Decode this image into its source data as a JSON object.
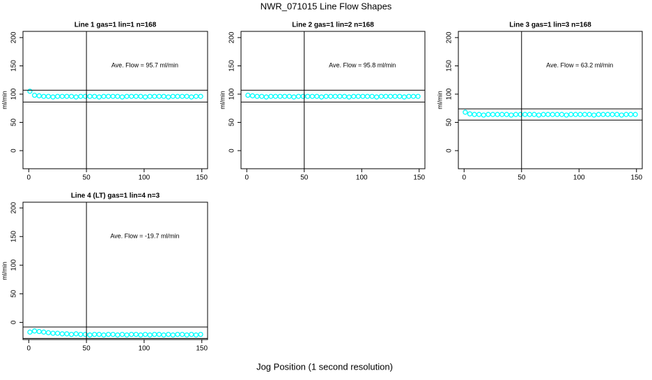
{
  "title": "NWR_071015  Line Flow Shapes",
  "xlabel": "Jog Position (1 second resolution)",
  "chart_data": [
    {
      "type": "scatter",
      "title": "Line 1 gas=1 lin=1 n=168",
      "ylabel": "ml/min",
      "annotation": "Ave. Flow =  95.7  ml/min",
      "color": "#00ffff",
      "x": [
        1,
        5,
        9,
        13,
        17,
        21,
        25,
        29,
        33,
        37,
        41,
        45,
        49,
        53,
        57,
        61,
        65,
        69,
        73,
        77,
        81,
        85,
        89,
        93,
        97,
        101,
        105,
        109,
        113,
        117,
        121,
        125,
        129,
        133,
        137,
        141,
        145,
        149
      ],
      "values": [
        105,
        98,
        97,
        96,
        96,
        95,
        96,
        96,
        96,
        96,
        95,
        96,
        96,
        96,
        96,
        95,
        96,
        96,
        96,
        96,
        95,
        96,
        96,
        96,
        96,
        95,
        96,
        96,
        96,
        96,
        95,
        96,
        96,
        96,
        96,
        95,
        96,
        96
      ],
      "hlines": [
        86,
        107
      ],
      "vlines": [
        50
      ],
      "xlim": [
        -5,
        155
      ],
      "ylim": [
        -32,
        211
      ],
      "xticks": [
        0,
        50,
        100,
        150
      ],
      "yticks": [
        0,
        50,
        100,
        150,
        200
      ]
    },
    {
      "type": "scatter",
      "title": "Line 2 gas=1 lin=2 n=168",
      "ylabel": "ml/min",
      "annotation": "Ave. Flow =  95.8  ml/min",
      "color": "#00ffff",
      "x": [
        1,
        5,
        9,
        13,
        17,
        21,
        25,
        29,
        33,
        37,
        41,
        45,
        49,
        53,
        57,
        61,
        65,
        69,
        73,
        77,
        81,
        85,
        89,
        93,
        97,
        101,
        105,
        109,
        113,
        117,
        121,
        125,
        129,
        133,
        137,
        141,
        145,
        149
      ],
      "values": [
        98,
        97,
        96,
        96,
        95,
        96,
        96,
        96,
        96,
        96,
        95,
        96,
        96,
        96,
        96,
        96,
        95,
        96,
        96,
        96,
        96,
        96,
        95,
        96,
        96,
        96,
        96,
        96,
        95,
        96,
        96,
        96,
        96,
        96,
        95,
        96,
        96,
        96
      ],
      "hlines": [
        86,
        107
      ],
      "vlines": [
        50
      ],
      "xlim": [
        -5,
        155
      ],
      "ylim": [
        -32,
        211
      ],
      "xticks": [
        0,
        50,
        100,
        150
      ],
      "yticks": [
        0,
        50,
        100,
        150,
        200
      ]
    },
    {
      "type": "scatter",
      "title": "Line 3 gas=1 lin=3 n=168",
      "ylabel": "ml/min",
      "annotation": "Ave. Flow =  63.2  ml/min",
      "color": "#00ffff",
      "x": [
        1,
        5,
        9,
        13,
        17,
        21,
        25,
        29,
        33,
        37,
        41,
        45,
        49,
        53,
        57,
        61,
        65,
        69,
        73,
        77,
        81,
        85,
        89,
        93,
        97,
        101,
        105,
        109,
        113,
        117,
        121,
        125,
        129,
        133,
        137,
        141,
        145,
        149
      ],
      "values": [
        68,
        65,
        64,
        64,
        63,
        64,
        64,
        64,
        64,
        64,
        63,
        64,
        64,
        64,
        64,
        64,
        63,
        64,
        64,
        64,
        64,
        64,
        63,
        64,
        64,
        64,
        64,
        64,
        63,
        64,
        64,
        64,
        64,
        64,
        63,
        64,
        64,
        64
      ],
      "hlines": [
        54,
        74
      ],
      "vlines": [
        50
      ],
      "xlim": [
        -5,
        155
      ],
      "ylim": [
        -32,
        211
      ],
      "xticks": [
        0,
        50,
        100,
        150
      ],
      "yticks": [
        0,
        50,
        100,
        150,
        200
      ]
    },
    {
      "type": "scatter",
      "title": "Line 4 (LT) gas=1 lin=4 n=3",
      "ylabel": "ml/min",
      "annotation": "Ave. Flow =  -19.7  ml/min",
      "color": "#00ffff",
      "x": [
        1,
        5,
        9,
        13,
        17,
        21,
        25,
        29,
        33,
        37,
        41,
        45,
        49,
        53,
        57,
        61,
        65,
        69,
        73,
        77,
        81,
        85,
        89,
        93,
        97,
        101,
        105,
        109,
        113,
        117,
        121,
        125,
        129,
        133,
        137,
        141,
        145,
        149
      ],
      "values": [
        -17,
        -15,
        -16,
        -17,
        -18,
        -19,
        -19,
        -20,
        -20,
        -21,
        -20,
        -21,
        -21,
        -22,
        -21,
        -21,
        -22,
        -21,
        -21,
        -22,
        -21,
        -22,
        -21,
        -21,
        -22,
        -21,
        -22,
        -21,
        -21,
        -22,
        -21,
        -22,
        -21,
        -21,
        -22,
        -21,
        -22,
        -21
      ],
      "hlines": [
        -28,
        -8
      ],
      "vlines": [
        50
      ],
      "xlim": [
        -5,
        155
      ],
      "ylim": [
        -30,
        210
      ],
      "xticks": [
        0,
        50,
        100,
        150
      ],
      "yticks": [
        0,
        50,
        100,
        150,
        200
      ]
    }
  ]
}
